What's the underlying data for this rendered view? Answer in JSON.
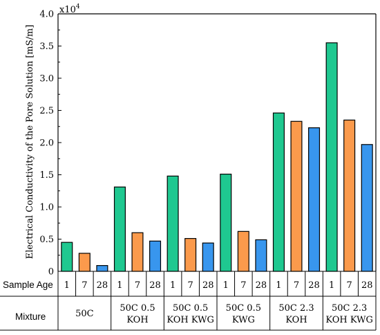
{
  "chart_data": {
    "type": "bar",
    "ylabel": "Electrical Conductivity of the Pore Solution [mS/m]",
    "y_multiplier_base": "x10",
    "y_multiplier_exp": "4",
    "ylim": [
      0,
      4.0
    ],
    "y_ticks": [
      "0",
      "0.5",
      "1.0",
      "1.5",
      "2.0",
      "2.5",
      "3.0",
      "3.5",
      "4.0"
    ],
    "grid": false,
    "row_labels": {
      "sample_age": "Sample Age",
      "mixture": "Mixture"
    },
    "colors": {
      "1": "#1fc890",
      "7": "#fb9a4c",
      "28": "#3896ee"
    },
    "groups": [
      {
        "mixture": [
          "50C"
        ],
        "ages": [
          "1",
          "7",
          "28"
        ],
        "values": [
          0.45,
          0.28,
          0.09
        ]
      },
      {
        "mixture": [
          "50C 0.5",
          "KOH"
        ],
        "ages": [
          "1",
          "7",
          "28"
        ],
        "values": [
          1.31,
          0.6,
          0.47
        ]
      },
      {
        "mixture": [
          "50C 0.5",
          "KOH KWG"
        ],
        "ages": [
          "1",
          "7",
          "28"
        ],
        "values": [
          1.48,
          0.51,
          0.44
        ]
      },
      {
        "mixture": [
          "50C 0.5",
          "KWG"
        ],
        "ages": [
          "1",
          "7",
          "28"
        ],
        "values": [
          1.51,
          0.62,
          0.49
        ]
      },
      {
        "mixture": [
          "50C 2.3",
          "KOH"
        ],
        "ages": [
          "1",
          "7",
          "28"
        ],
        "values": [
          2.46,
          2.33,
          2.23
        ]
      },
      {
        "mixture": [
          "50C 2.3",
          "KOH KWG"
        ],
        "ages": [
          "1",
          "7",
          "28"
        ],
        "values": [
          3.55,
          2.35,
          1.97
        ]
      }
    ]
  }
}
